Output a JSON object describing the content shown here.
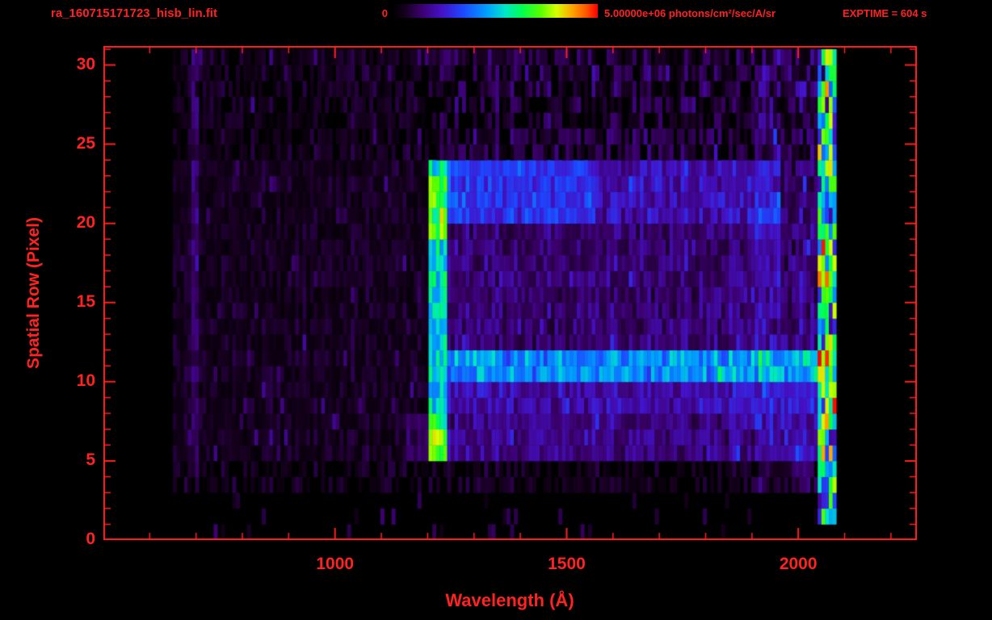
{
  "header": {
    "title": "ra_160715171723_hisb_lin.fit",
    "colorbar_min": "0",
    "colorbar_max": "5.00000e+06 photons/cm²/sec/A/sr",
    "exptime": "EXPTIME = 604 s"
  },
  "colors": {
    "accent": "#ff2222",
    "background": "#000000",
    "colormap": [
      {
        "t": 0.0,
        "c": "#000000"
      },
      {
        "t": 0.06,
        "c": "#16001e"
      },
      {
        "t": 0.14,
        "c": "#3c006e"
      },
      {
        "t": 0.24,
        "c": "#4412c8"
      },
      {
        "t": 0.34,
        "c": "#1e46ff"
      },
      {
        "t": 0.46,
        "c": "#00a0ff"
      },
      {
        "t": 0.55,
        "c": "#00e6c8"
      },
      {
        "t": 0.63,
        "c": "#00ff50"
      },
      {
        "t": 0.72,
        "c": "#55ff00"
      },
      {
        "t": 0.8,
        "c": "#d7ff00"
      },
      {
        "t": 0.88,
        "c": "#ffa000"
      },
      {
        "t": 0.95,
        "c": "#ff5000"
      },
      {
        "t": 1.0,
        "c": "#ff0000"
      }
    ]
  },
  "chart_data": {
    "type": "heatmap",
    "title": "ra_160715171723_hisb_lin.fit",
    "xlabel": "Wavelength (Å)",
    "ylabel": "Spatial Row (Pixel)",
    "xlim": [
      500,
      2256
    ],
    "ylim": [
      0,
      31.2
    ],
    "xticks": [
      1000,
      1500,
      2000
    ],
    "xtick_minor_step": 100,
    "yticks": [
      0,
      5,
      10,
      15,
      20,
      25,
      30
    ],
    "ytick_minor_step": 1,
    "colorbar": {
      "min": 0,
      "max": 5000000,
      "units": "photons/cm²/sec/A/sr"
    },
    "exposure_seconds": 604,
    "data_extent": {
      "wavelength": [
        650,
        2080
      ],
      "rows": [
        0,
        31
      ]
    },
    "bin_angstroms": 8,
    "background_noise": {
      "seed": 42,
      "split_wavelength": 1216,
      "base_left": 0.05,
      "base_right": 0.08,
      "sparse_rows": [
        3,
        5
      ],
      "sparse_fill": 0.55,
      "very_sparse_rows": [
        0,
        3
      ],
      "very_sparse_fill": 0.05,
      "upper_sparse_rows": [
        24,
        31
      ],
      "upper_blank_probability": 0.3,
      "speck_probability": 0.05,
      "speck_add": 0.12
    },
    "features": [
      {
        "name": "lyman-alpha-emission-line",
        "kind": "vband",
        "exclusive": true,
        "wl": [
          1198,
          1242
        ],
        "rows": [
          5,
          24
        ],
        "add": 0.45
      },
      {
        "name": "line-lower-bright-knot",
        "kind": "vband",
        "wl": [
          1198,
          1242
        ],
        "rows": [
          5.5,
          8.5
        ],
        "add": 0.16
      },
      {
        "name": "line-upper-bright-knot",
        "kind": "vband",
        "wl": [
          1198,
          1242
        ],
        "rows": [
          19,
          23.5
        ],
        "add": 0.14
      },
      {
        "name": "bright-spatial-row-band",
        "kind": "hband",
        "wl": [
          1242,
          2085
        ],
        "rows": [
          10,
          11.6
        ],
        "add": 0.34
      },
      {
        "name": "secondary-row-band",
        "kind": "hband",
        "wl": [
          1242,
          2085
        ],
        "rows": [
          8,
          10
        ],
        "add": 0.11
      },
      {
        "name": "lower-row-band",
        "kind": "hband",
        "wl": [
          1150,
          2085
        ],
        "rows": [
          5,
          8
        ],
        "add": 0.07
      },
      {
        "name": "upper-row-band",
        "kind": "hband",
        "wl": [
          1242,
          1960
        ],
        "rows": [
          20,
          24
        ],
        "add": 0.12
      },
      {
        "name": "upper-band-near-line",
        "kind": "hband",
        "wl": [
          1242,
          1560
        ],
        "rows": [
          20,
          24
        ],
        "add": 0.09
      },
      {
        "name": "mid-rows-wash",
        "kind": "hband",
        "wl": [
          1242,
          1960
        ],
        "rows": [
          11.6,
          20
        ],
        "add": 0.05
      },
      {
        "name": "detector-right-edge-column",
        "kind": "vband",
        "wl": [
          2040,
          2082
        ],
        "rows": [
          1,
          31
        ],
        "add": 0.3,
        "rand": 2.4
      },
      {
        "name": "right-side-noise",
        "kind": "vband",
        "wl": [
          1900,
          2040
        ],
        "rows": [
          3,
          31
        ],
        "add": 0.05,
        "rand": 1.6
      },
      {
        "name": "left-faint-stripe",
        "kind": "vband",
        "wl": [
          683,
          699
        ],
        "rows": [
          4,
          31
        ],
        "add": 0.07
      }
    ]
  }
}
